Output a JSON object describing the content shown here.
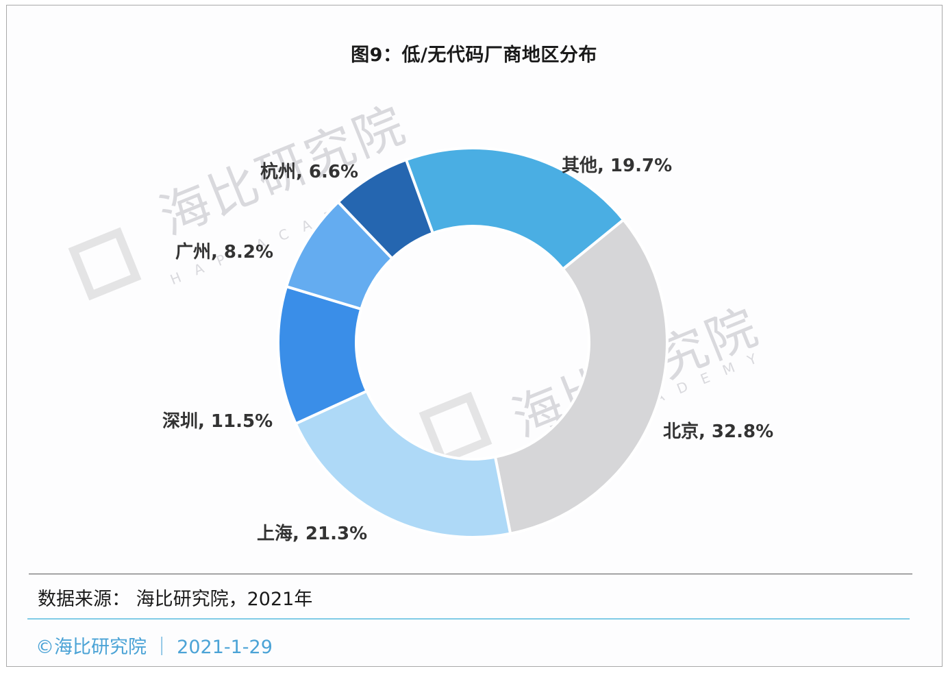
{
  "title": "图9：低/无代码厂商地区分布",
  "source": "数据来源： 海比研究院，2021年",
  "credit": "©海比研究院 ｜ 2021-1-29",
  "watermark": {
    "cn": "海比研究院",
    "en": "HAP ACADEMY"
  },
  "labels": {
    "others": "其他, 19.7%",
    "beijing": "北京, 32.8%",
    "shanghai": "上海, 21.3%",
    "shenzhen": "深圳, 11.5%",
    "guangzhou": "广州, 8.2%",
    "hangzhou": "杭州, 6.6%"
  },
  "chart_data": {
    "type": "pie",
    "subtype": "donut",
    "title": "图9：低/无代码厂商地区分布",
    "categories": [
      "其他",
      "北京",
      "上海",
      "深圳",
      "广州",
      "杭州"
    ],
    "values": [
      19.7,
      32.8,
      21.3,
      11.5,
      8.2,
      6.6
    ],
    "unit": "%",
    "colors": [
      "#4aaee3",
      "#d6d6d8",
      "#aed9f7",
      "#3a8ee8",
      "#64acf0",
      "#2566b0"
    ],
    "start_angle_deg_clockwise_from_top": -20,
    "direction": "clockwise",
    "legend": "none (data labels outside slices)",
    "source": "数据来源： 海比研究院，2021年"
  }
}
